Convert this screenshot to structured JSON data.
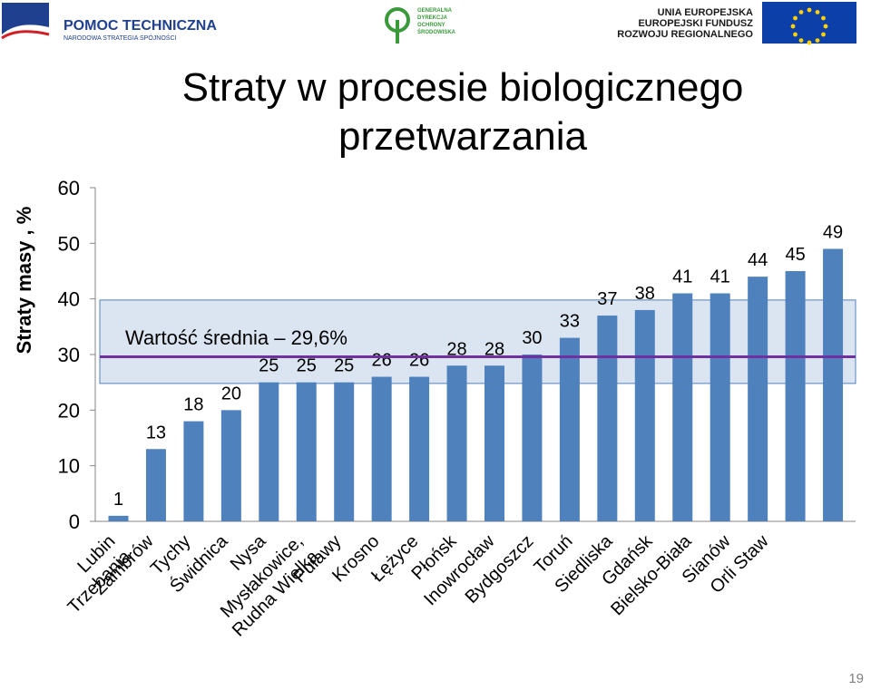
{
  "logos": {
    "left_brand": "POMOC TECHNICZNA",
    "left_sub": "NARODOWA STRATEGIA SPÓJNOŚCI",
    "center_lines": [
      "GENERALNA",
      "DYREKCJA",
      "OCHRONY",
      "ŚRODOWISKA"
    ],
    "right_lines": [
      "UNIA EUROPEJSKA",
      "EUROPEJSKI FUNDUSZ",
      "ROZWOJU REGIONALNEGO"
    ]
  },
  "page_number": "19",
  "colors": {
    "bar": "#4f81bd",
    "mean_line": "#7030a0",
    "band": "#dbe5f1",
    "band_border": "#4f81bd"
  },
  "chart_data": {
    "type": "bar",
    "title": "Straty w procesie biologicznego przetwarzania",
    "title_lines": [
      "Straty w procesie biologicznego",
      "przetwarzania"
    ],
    "ylabel": "Straty masy , %",
    "xlabel": "",
    "ylim": [
      0,
      60
    ],
    "yticks": [
      0,
      10,
      20,
      30,
      40,
      50,
      60
    ],
    "grid": false,
    "categories": [
      "Lubin",
      "Trzebania",
      "Zambrów",
      "Tychy",
      "Świdnica",
      "Nysa",
      "Mysłakowice,",
      "Rudna Wielka",
      "Puławy",
      "Krosno",
      "Łężyce",
      "Płońsk",
      "Inowrocław",
      "Bydgoszcz",
      "Toruń",
      "Siedliska",
      "Gdańsk",
      "Bielsko-Biała",
      "Sianów",
      "Orli Staw"
    ],
    "slot_labels": [
      [
        "Lubin",
        "Trzebania"
      ],
      [
        "Zambrów"
      ],
      [
        "Tychy"
      ],
      [
        "Świdnica"
      ],
      [
        "Nysa"
      ],
      [
        "Mysłakowice,",
        "Rudna Wielka"
      ],
      [
        "Puławy"
      ],
      [
        "Krosno"
      ],
      [
        "Łężyce"
      ],
      [
        "Płońsk"
      ],
      [
        "Inowrocław"
      ],
      [
        "Bydgoszcz"
      ],
      [
        "Toruń"
      ],
      [
        "Siedliska"
      ],
      [
        "Gdańsk"
      ],
      [
        "Bielsko-Biała"
      ],
      [
        "Sianów"
      ],
      [
        "Orli Staw"
      ]
    ],
    "values": [
      1,
      13,
      18,
      20,
      25,
      25,
      25,
      26,
      26,
      28,
      28,
      30,
      33,
      37,
      38,
      41,
      41,
      44,
      45,
      49
    ],
    "data_labels": [
      "1",
      "13",
      "18",
      "20",
      "25",
      "25",
      "25",
      "26",
      "26",
      "28",
      "28",
      "30",
      "33",
      "37",
      "38",
      "41",
      "41",
      "44",
      "45",
      "49"
    ],
    "mean": {
      "value": 29.6,
      "label": "Wartość  średnia – 29,6%"
    },
    "band": [
      24.8,
      39.8
    ]
  }
}
